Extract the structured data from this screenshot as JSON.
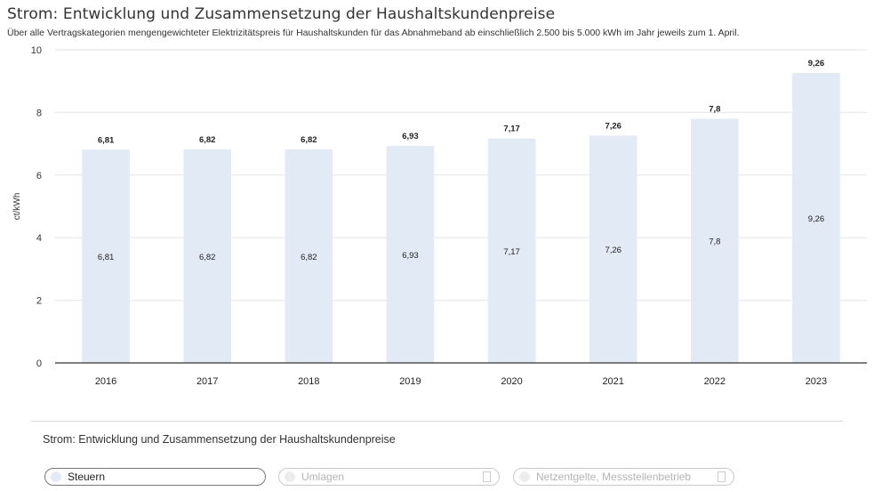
{
  "header": {
    "title": "Strom: Entwicklung und Zusammensetzung der Haushaltskundenpreise",
    "subtitle": "Über alle Vertragskategorien mengengewichteter Elektrizitätspreis für Haushaltskunden für das Abnahmeband ab einschließlich 2.500 bis 5.000 kWh im Jahr jeweils zum 1. April."
  },
  "colors": {
    "bar": "#e2eaf5",
    "grid": "#e6e6e6",
    "baseline": "#333333"
  },
  "chart_data": {
    "type": "bar",
    "title": "Strom: Entwicklung und Zusammensetzung der Haushaltskundenpreise",
    "ylabel": "ct/kWh",
    "xlabel": "",
    "ylim": [
      0,
      10
    ],
    "yticks": [
      "0",
      "2",
      "4",
      "6",
      "8",
      "10"
    ],
    "grid": true,
    "categories": [
      "2016",
      "2017",
      "2018",
      "2019",
      "2020",
      "2021",
      "2022",
      "2023"
    ],
    "series": [
      {
        "name": "Steuern",
        "values": [
          6.81,
          6.82,
          6.82,
          6.93,
          7.17,
          7.26,
          7.8,
          9.26
        ],
        "labels": [
          "6,81",
          "6,82",
          "6,82",
          "6,93",
          "7,17",
          "7,26",
          "7,8",
          "9,26"
        ]
      }
    ]
  },
  "legend": {
    "title": "Strom: Entwicklung und Zusammensetzung der Haushaltskundenpreise",
    "items": [
      {
        "label": "Steuern",
        "active": true
      },
      {
        "label": "Umlagen",
        "active": false
      },
      {
        "label": "Netzentgelte, Messstellenbetrieb",
        "active": false
      }
    ]
  }
}
